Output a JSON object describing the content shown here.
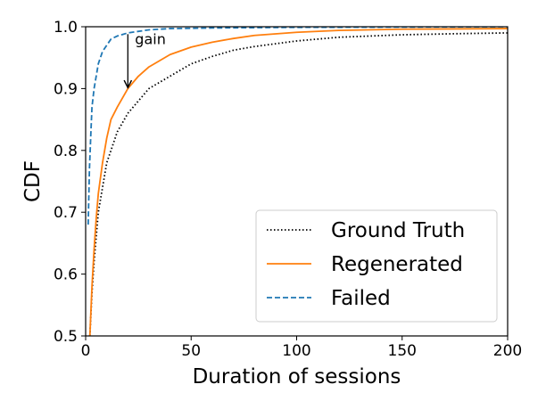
{
  "chart_data": {
    "type": "line",
    "xlabel": "Duration of sessions",
    "ylabel": "CDF",
    "xlim": [
      0,
      200
    ],
    "ylim": [
      0.5,
      1.0
    ],
    "xticks": [
      0,
      50,
      100,
      150,
      200
    ],
    "xtick_labels": [
      "0",
      "50",
      "100",
      "150",
      "200"
    ],
    "yticks": [
      0.5,
      0.6,
      0.7,
      0.8,
      0.9,
      1.0
    ],
    "ytick_labels": [
      "0.5",
      "0.6",
      "0.7",
      "0.8",
      "0.9",
      "1.0"
    ],
    "grid": false,
    "legend_position": "bottom-right",
    "series": [
      {
        "name": "Ground Truth",
        "color": "#000000",
        "dash": "dotted",
        "x": [
          2,
          3,
          4,
          5,
          6,
          8,
          10,
          12,
          15,
          20,
          25,
          30,
          40,
          50,
          60,
          70,
          80,
          100,
          120,
          150,
          180,
          200
        ],
        "y": [
          0.5,
          0.57,
          0.62,
          0.66,
          0.7,
          0.74,
          0.78,
          0.8,
          0.83,
          0.86,
          0.88,
          0.9,
          0.92,
          0.94,
          0.952,
          0.962,
          0.968,
          0.977,
          0.983,
          0.987,
          0.989,
          0.99
        ]
      },
      {
        "name": "Regenerated",
        "color": "#ff7f0e",
        "dash": "solid",
        "x": [
          2,
          3,
          4,
          5,
          6,
          8,
          10,
          12,
          15,
          20,
          25,
          30,
          40,
          50,
          60,
          70,
          80,
          100,
          120,
          150,
          200
        ],
        "y": [
          0.5,
          0.58,
          0.64,
          0.69,
          0.73,
          0.78,
          0.82,
          0.85,
          0.87,
          0.9,
          0.92,
          0.935,
          0.955,
          0.967,
          0.975,
          0.981,
          0.986,
          0.991,
          0.994,
          0.996,
          0.997
        ]
      },
      {
        "name": "Failed",
        "color": "#1f77b4",
        "dash": "dashed",
        "x": [
          1.2,
          1.8,
          2.5,
          3,
          4,
          5,
          6,
          8,
          10,
          12,
          15,
          20,
          30,
          40,
          60,
          100,
          200
        ],
        "y": [
          0.68,
          0.77,
          0.83,
          0.87,
          0.9,
          0.92,
          0.94,
          0.96,
          0.97,
          0.98,
          0.985,
          0.99,
          0.995,
          0.997,
          0.998,
          0.999,
          1.0
        ]
      }
    ],
    "annotations": [
      {
        "text": "gain",
        "arrow_from": [
          20,
          0.988
        ],
        "arrow_to": [
          20,
          0.9
        ]
      }
    ]
  }
}
